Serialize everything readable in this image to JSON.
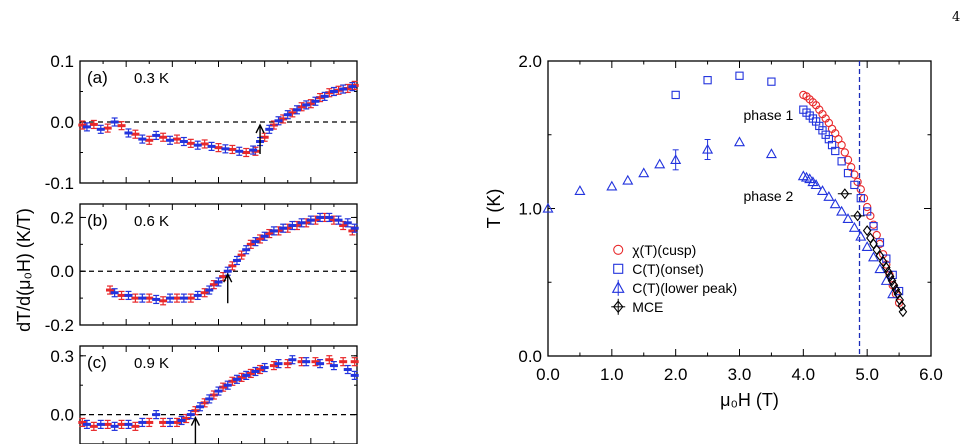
{
  "page_number": "4",
  "colors": {
    "red": "#e8282a",
    "blue": "#2233dd",
    "black": "#000000",
    "dashed_line": "#1a2bb8"
  },
  "left_ylabel": "dT/d(μ₀H) (K/T)",
  "chart_data": [
    {
      "id": "a",
      "type": "scatter",
      "panel_label": "(a)",
      "annotation": "0.3 K",
      "ylim": [
        -0.1,
        0.1
      ],
      "xlim": [
        0,
        6
      ],
      "y_ticks": [
        "0.1",
        "0.0",
        "-0.1"
      ],
      "y_tick_values": [
        0.1,
        0.0,
        -0.1
      ],
      "arrow_x": 3.9,
      "reference_line_y": 0,
      "series": [
        {
          "color": "red",
          "x": [
            0.05,
            0.3,
            0.6,
            0.9,
            1.2,
            1.5,
            1.8,
            2.1,
            2.4,
            2.7,
            3.0,
            3.3,
            3.6,
            3.8,
            4.0,
            4.2,
            4.4,
            4.6,
            4.8,
            5.0,
            5.2,
            5.4,
            5.6,
            5.8,
            5.95
          ],
          "y": [
            -0.005,
            -0.004,
            -0.01,
            -0.006,
            -0.02,
            -0.03,
            -0.025,
            -0.028,
            -0.035,
            -0.036,
            -0.042,
            -0.045,
            -0.05,
            -0.048,
            -0.025,
            -0.005,
            0.005,
            0.015,
            0.025,
            0.03,
            0.04,
            0.048,
            0.052,
            0.055,
            0.06
          ]
        },
        {
          "color": "blue",
          "x": [
            0.15,
            0.45,
            0.75,
            1.05,
            1.35,
            1.65,
            1.95,
            2.25,
            2.55,
            2.85,
            3.15,
            3.45,
            3.75,
            3.9,
            4.1,
            4.3,
            4.5,
            4.7,
            4.9,
            5.1,
            5.3,
            5.5,
            5.7,
            5.9
          ],
          "y": [
            -0.008,
            -0.012,
            0.0,
            -0.018,
            -0.028,
            -0.022,
            -0.03,
            -0.032,
            -0.038,
            -0.04,
            -0.044,
            -0.048,
            -0.046,
            -0.032,
            -0.012,
            0.002,
            0.012,
            0.02,
            0.028,
            0.034,
            0.042,
            0.05,
            0.054,
            0.058
          ]
        }
      ]
    },
    {
      "id": "b",
      "type": "scatter",
      "panel_label": "(b)",
      "annotation": "0.6 K",
      "ylim": [
        -0.2,
        0.25
      ],
      "xlim": [
        0,
        6
      ],
      "y_ticks": [
        "0.2",
        "0.0",
        "-0.2"
      ],
      "y_tick_values": [
        0.2,
        0.0,
        -0.2
      ],
      "arrow_x": 3.2,
      "reference_line_y": 0,
      "series": [
        {
          "color": "red",
          "x": [
            0.65,
            0.9,
            1.2,
            1.5,
            1.8,
            2.1,
            2.4,
            2.7,
            2.9,
            3.1,
            3.3,
            3.5,
            3.7,
            3.9,
            4.1,
            4.3,
            4.5,
            4.7,
            4.9,
            5.1,
            5.3,
            5.5,
            5.7,
            5.9
          ],
          "y": [
            -0.07,
            -0.09,
            -0.1,
            -0.1,
            -0.11,
            -0.1,
            -0.1,
            -0.08,
            -0.05,
            -0.02,
            0.02,
            0.06,
            0.1,
            0.12,
            0.14,
            0.15,
            0.16,
            0.17,
            0.18,
            0.19,
            0.2,
            0.19,
            0.17,
            0.15
          ]
        },
        {
          "color": "blue",
          "x": [
            0.75,
            1.05,
            1.35,
            1.65,
            1.95,
            2.25,
            2.55,
            2.8,
            3.0,
            3.2,
            3.4,
            3.6,
            3.8,
            4.0,
            4.2,
            4.4,
            4.6,
            4.8,
            5.0,
            5.2,
            5.4,
            5.6,
            5.8,
            5.95
          ],
          "y": [
            -0.08,
            -0.09,
            -0.1,
            -0.105,
            -0.1,
            -0.1,
            -0.09,
            -0.07,
            -0.04,
            0.0,
            0.04,
            0.08,
            0.11,
            0.13,
            0.15,
            0.16,
            0.17,
            0.18,
            0.19,
            0.2,
            0.2,
            0.19,
            0.18,
            0.16
          ]
        }
      ]
    },
    {
      "id": "c",
      "type": "scatter",
      "panel_label": "(c)",
      "annotation": "0.9 K",
      "ylim": [
        -0.15,
        0.35
      ],
      "xlim": [
        0,
        6
      ],
      "y_ticks": [
        "0.3",
        "0.0"
      ],
      "y_tick_values": [
        0.3,
        0.0
      ],
      "arrow_x": 2.5,
      "reference_line_y": 0,
      "series": [
        {
          "color": "red",
          "x": [
            0.05,
            0.3,
            0.6,
            0.9,
            1.2,
            1.5,
            1.8,
            2.1,
            2.3,
            2.5,
            2.7,
            2.9,
            3.1,
            3.3,
            3.5,
            3.7,
            3.9,
            4.2,
            4.5,
            4.8,
            5.1,
            5.4,
            5.7,
            5.95
          ],
          "y": [
            -0.04,
            -0.06,
            -0.05,
            -0.05,
            -0.06,
            -0.04,
            -0.04,
            -0.04,
            -0.02,
            0.02,
            0.06,
            0.1,
            0.14,
            0.17,
            0.19,
            0.21,
            0.23,
            0.25,
            0.26,
            0.27,
            0.27,
            0.28,
            0.27,
            0.27
          ]
        },
        {
          "color": "blue",
          "x": [
            0.15,
            0.45,
            0.75,
            1.05,
            1.35,
            1.65,
            1.95,
            2.2,
            2.4,
            2.6,
            2.8,
            3.0,
            3.2,
            3.4,
            3.6,
            3.8,
            4.0,
            4.3,
            4.6,
            4.9,
            5.2,
            5.5,
            5.8,
            5.95
          ],
          "y": [
            -0.05,
            -0.05,
            -0.06,
            -0.05,
            -0.04,
            0.0,
            -0.04,
            -0.03,
            0.0,
            0.04,
            0.08,
            0.12,
            0.15,
            0.18,
            0.2,
            0.22,
            0.24,
            0.26,
            0.28,
            0.27,
            0.26,
            0.25,
            0.23,
            0.2
          ]
        }
      ]
    },
    {
      "id": "phase",
      "type": "scatter",
      "xlabel": "μ₀H (T)",
      "ylabel": "T (K)",
      "xlim": [
        0,
        6
      ],
      "ylim": [
        0,
        2
      ],
      "x_ticks": [
        "0.0",
        "1.0",
        "2.0",
        "3.0",
        "4.0",
        "5.0",
        "6.0"
      ],
      "x_tick_values": [
        0,
        1,
        2,
        3,
        4,
        5,
        6
      ],
      "y_ticks": [
        "2.0",
        "1.0",
        "0.0"
      ],
      "y_tick_values": [
        2,
        1,
        0
      ],
      "dashed_line_x": 4.88,
      "region_labels": [
        {
          "text": "phase 1",
          "x": 4.0,
          "y": 1.6
        },
        {
          "text": "phase 2",
          "x": 4.0,
          "y": 1.05
        }
      ],
      "legend": {
        "position": "lower-left",
        "entries": [
          {
            "text": "χ(T)(cusp)",
            "marker": "circle",
            "color": "red"
          },
          {
            "text": "C(T)(onset)",
            "marker": "square",
            "color": "blue"
          },
          {
            "text": "C(T)(lower peak)",
            "marker": "triangle",
            "color": "blue"
          },
          {
            "text": "MCE",
            "marker": "diamond",
            "color": "black"
          }
        ]
      },
      "series": [
        {
          "name": "χ(T)(cusp)",
          "marker": "circle",
          "color": "red",
          "x": [
            4.0,
            4.05,
            4.1,
            4.15,
            4.2,
            4.25,
            4.3,
            4.35,
            4.4,
            4.45,
            4.5,
            4.55,
            4.6,
            4.65,
            4.7,
            4.75,
            4.8,
            4.85,
            4.9,
            4.95,
            5.0,
            5.05,
            5.1,
            5.15,
            5.2,
            5.25,
            5.3,
            5.35,
            5.4,
            5.45,
            5.5
          ],
          "y": [
            1.77,
            1.76,
            1.74,
            1.72,
            1.7,
            1.67,
            1.64,
            1.61,
            1.58,
            1.54,
            1.51,
            1.47,
            1.43,
            1.38,
            1.33,
            1.28,
            1.23,
            1.18,
            1.13,
            1.07,
            1.01,
            0.95,
            0.89,
            0.82,
            0.76,
            0.69,
            0.62,
            0.55,
            0.48,
            0.42,
            0.36
          ]
        },
        {
          "name": "C(T)(onset)",
          "marker": "square",
          "color": "blue",
          "x": [
            2.0,
            2.5,
            3.0,
            3.5,
            4.0,
            4.05,
            4.1,
            4.15,
            4.2,
            4.25,
            4.3,
            4.35,
            4.4,
            4.45,
            4.5,
            4.6,
            4.7,
            4.8,
            4.9,
            5.0,
            5.1,
            5.2,
            5.3,
            5.4,
            5.5
          ],
          "y": [
            1.77,
            1.87,
            1.9,
            1.86,
            1.67,
            1.65,
            1.63,
            1.61,
            1.59,
            1.56,
            1.53,
            1.5,
            1.47,
            1.43,
            1.39,
            1.32,
            1.24,
            1.16,
            1.07,
            0.98,
            0.88,
            0.77,
            0.66,
            0.55,
            0.44
          ]
        },
        {
          "name": "C(T)(lower peak)",
          "marker": "triangle",
          "color": "blue",
          "x": [
            0.0,
            0.5,
            1.0,
            1.25,
            1.5,
            1.75,
            2.0,
            2.5,
            3.0,
            3.5,
            4.0,
            4.05,
            4.1,
            4.15,
            4.2,
            4.3,
            4.4,
            4.5,
            4.6,
            4.7,
            4.8,
            4.9,
            5.0,
            5.1,
            5.2,
            5.3,
            5.4
          ],
          "y": [
            1.0,
            1.12,
            1.15,
            1.19,
            1.24,
            1.3,
            1.33,
            1.4,
            1.45,
            1.37,
            1.22,
            1.21,
            1.2,
            1.18,
            1.16,
            1.12,
            1.08,
            1.03,
            0.98,
            0.93,
            0.87,
            0.81,
            0.74,
            0.67,
            0.59,
            0.51,
            0.42
          ]
        },
        {
          "name": "MCE",
          "marker": "diamond",
          "color": "black",
          "x": [
            4.65,
            4.85,
            5.0,
            5.05,
            5.1,
            5.15,
            5.2,
            5.25,
            5.3,
            5.33,
            5.36,
            5.39,
            5.42,
            5.45,
            5.48,
            5.51,
            5.54,
            5.56
          ],
          "y": [
            1.1,
            0.95,
            0.85,
            0.8,
            0.76,
            0.72,
            0.68,
            0.64,
            0.6,
            0.57,
            0.54,
            0.51,
            0.48,
            0.45,
            0.42,
            0.38,
            0.34,
            0.3
          ]
        }
      ]
    }
  ]
}
